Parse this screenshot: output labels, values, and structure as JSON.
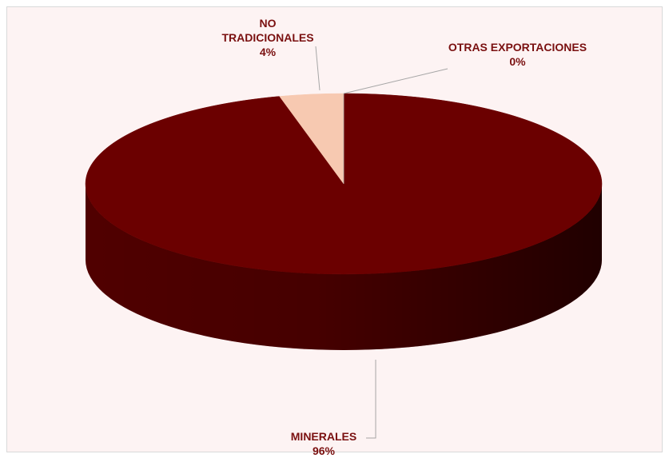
{
  "chart_data": {
    "type": "pie3d",
    "categories": [
      "MINERALES",
      "NO TRADICIONALES",
      "OTRAS EXPORTACIONES"
    ],
    "values": [
      96,
      4,
      0
    ],
    "value_labels": [
      "96%",
      "4%",
      "0%"
    ],
    "colors": [
      "#6b0000",
      "#f7c9b1",
      "#a5a5a5"
    ]
  }
}
